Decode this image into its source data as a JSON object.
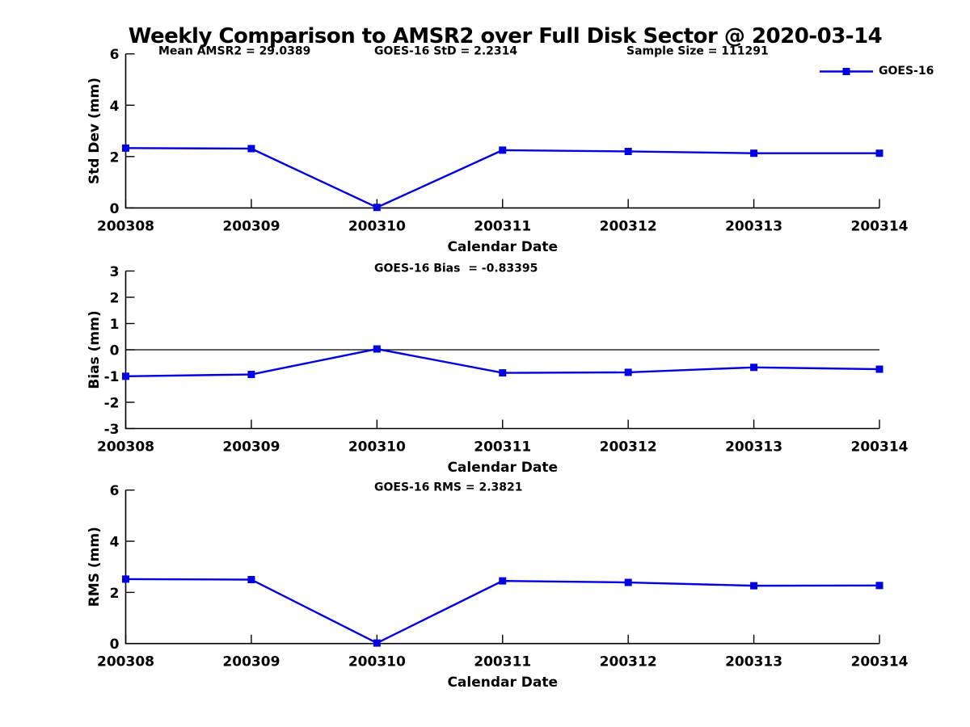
{
  "figure": {
    "title": "Weekly Comparison to AMSR2 over Full Disk Sector @ 2020-03-14",
    "legend": {
      "label": "GOES-16",
      "marker": "filled-square",
      "position": "top-right"
    },
    "colors": {
      "series": "#0000e0",
      "axis": "#000000",
      "text": "#000000",
      "background": "#ffffff",
      "zero_line": "#000000"
    }
  },
  "chart_data": [
    {
      "type": "line",
      "panel": "std-dev",
      "categories": [
        "200308",
        "200309",
        "200310",
        "200311",
        "200312",
        "200313",
        "200314"
      ],
      "series": [
        {
          "name": "GOES-16",
          "values": [
            2.33,
            2.31,
            0.02,
            2.25,
            2.2,
            2.13,
            2.13
          ]
        }
      ],
      "xlabel": "Calendar Date",
      "ylabel": "Std Dev (mm)",
      "ylim": [
        0,
        6
      ],
      "yticks": [
        0,
        2,
        4,
        6
      ],
      "annotations": [
        {
          "text": "Mean AMSR2 = 29.0389"
        },
        {
          "text": "GOES-16 StD = 2.2314"
        },
        {
          "text": "Sample Size = 111291"
        }
      ],
      "legend_entries": [
        "GOES-16"
      ],
      "zero_line": false,
      "grid": false,
      "marker": "square"
    },
    {
      "type": "line",
      "panel": "bias",
      "categories": [
        "200308",
        "200309",
        "200310",
        "200311",
        "200312",
        "200313",
        "200314"
      ],
      "series": [
        {
          "name": "GOES-16",
          "values": [
            -1.01,
            -0.94,
            0.03,
            -0.88,
            -0.86,
            -0.67,
            -0.74
          ]
        }
      ],
      "xlabel": "Calendar Date",
      "ylabel": "Bias (mm)",
      "ylim": [
        -3,
        3
      ],
      "yticks": [
        -3,
        -2,
        -1,
        0,
        1,
        2,
        3
      ],
      "annotations": [
        {
          "text": "GOES-16 Bias  = -0.83395"
        }
      ],
      "legend_entries": [],
      "zero_line": true,
      "grid": false,
      "marker": "square"
    },
    {
      "type": "line",
      "panel": "rms",
      "categories": [
        "200308",
        "200309",
        "200310",
        "200311",
        "200312",
        "200313",
        "200314"
      ],
      "series": [
        {
          "name": "GOES-16",
          "values": [
            2.52,
            2.5,
            0.02,
            2.45,
            2.39,
            2.26,
            2.27
          ]
        }
      ],
      "xlabel": "Calendar Date",
      "ylabel": "RMS (mm)",
      "ylim": [
        0,
        6
      ],
      "yticks": [
        0,
        2,
        4,
        6
      ],
      "annotations": [
        {
          "text": "GOES-16 RMS = 2.3821"
        }
      ],
      "legend_entries": [],
      "zero_line": false,
      "grid": false,
      "marker": "square"
    }
  ]
}
